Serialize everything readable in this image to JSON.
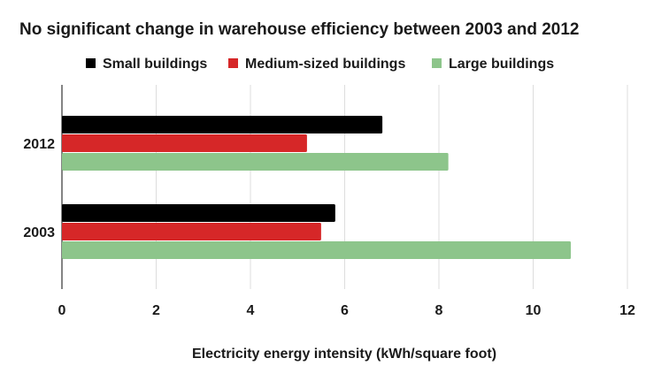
{
  "chart_data": {
    "type": "bar",
    "orientation": "horizontal",
    "title": "No significant change in warehouse efficiency between 2003 and 2012",
    "xlabel": "Electricity energy intensity (kWh/square foot)",
    "ylabel": "",
    "categories": [
      "2012",
      "2003"
    ],
    "series": [
      {
        "name": "Small buildings",
        "values": [
          6.8,
          5.8
        ],
        "color": "#000000"
      },
      {
        "name": "Medium-sized buildings",
        "values": [
          5.2,
          5.5
        ],
        "color": "#d62728"
      },
      {
        "name": "Large buildings",
        "values": [
          8.2,
          10.8
        ],
        "color": "#8dc58b"
      }
    ],
    "xlim": [
      0,
      12
    ],
    "xticks": [
      0,
      2,
      4,
      6,
      8,
      10,
      12
    ],
    "grid": "vertical",
    "legend": "top"
  }
}
